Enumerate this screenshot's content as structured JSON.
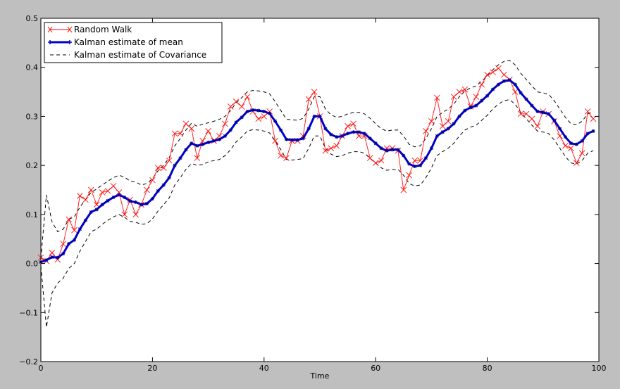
{
  "chart_data": {
    "type": "line",
    "title": "",
    "xlabel": "Time",
    "ylabel": "",
    "xlim": [
      0,
      100
    ],
    "ylim": [
      -0.2,
      0.5
    ],
    "x_ticks": [
      0,
      20,
      40,
      60,
      80,
      100
    ],
    "x_tick_labels": [
      "0",
      "20",
      "40",
      "60",
      "80",
      "100"
    ],
    "y_ticks": [
      -0.2,
      -0.1,
      0.0,
      0.1,
      0.2,
      0.3,
      0.4,
      0.5
    ],
    "y_tick_labels": [
      "−0.2",
      "−0.1",
      "0.0",
      "0.1",
      "0.2",
      "0.3",
      "0.4",
      "0.5"
    ],
    "grid": false,
    "legend_position": "top-left",
    "x": [
      0,
      1,
      2,
      3,
      4,
      5,
      6,
      7,
      8,
      9,
      10,
      11,
      12,
      13,
      14,
      15,
      16,
      17,
      18,
      19,
      20,
      21,
      22,
      23,
      24,
      25,
      26,
      27,
      28,
      29,
      30,
      31,
      32,
      33,
      34,
      35,
      36,
      37,
      38,
      39,
      40,
      41,
      42,
      43,
      44,
      45,
      46,
      47,
      48,
      49,
      50,
      51,
      52,
      53,
      54,
      55,
      56,
      57,
      58,
      59,
      60,
      61,
      62,
      63,
      64,
      65,
      66,
      67,
      68,
      69,
      70,
      71,
      72,
      73,
      74,
      75,
      76,
      77,
      78,
      79,
      80,
      81,
      82,
      83,
      84,
      85,
      86,
      87,
      88,
      89,
      90,
      91,
      92,
      93,
      94,
      95,
      96,
      97,
      98,
      99
    ],
    "series": [
      {
        "name": "Random Walk",
        "color": "#ff0000",
        "style": "thin solid line, x markers",
        "values": [
          0.012,
          0.005,
          0.022,
          0.008,
          0.04,
          0.09,
          0.068,
          0.138,
          0.13,
          0.15,
          0.12,
          0.145,
          0.148,
          0.158,
          0.145,
          0.1,
          0.13,
          0.1,
          0.12,
          0.15,
          0.17,
          0.195,
          0.195,
          0.21,
          0.265,
          0.265,
          0.285,
          0.275,
          0.215,
          0.25,
          0.27,
          0.25,
          0.26,
          0.285,
          0.32,
          0.33,
          0.32,
          0.34,
          0.31,
          0.295,
          0.3,
          0.31,
          0.25,
          0.22,
          0.215,
          0.25,
          0.25,
          0.26,
          0.335,
          0.35,
          0.3,
          0.23,
          0.235,
          0.24,
          0.26,
          0.28,
          0.285,
          0.26,
          0.26,
          0.215,
          0.205,
          0.21,
          0.235,
          0.235,
          0.23,
          0.15,
          0.18,
          0.21,
          0.21,
          0.27,
          0.29,
          0.338,
          0.28,
          0.29,
          0.34,
          0.35,
          0.355,
          0.32,
          0.34,
          0.365,
          0.385,
          0.39,
          0.398,
          0.385,
          0.375,
          0.35,
          0.305,
          0.305,
          0.295,
          0.28,
          0.31,
          0.305,
          0.29,
          0.26,
          0.24,
          0.235,
          0.205,
          0.225,
          0.31,
          0.295
        ]
      },
      {
        "name": "Kalman estimate of mean",
        "color": "#0000ff",
        "style": "thick solid line, star markers",
        "values": [
          0.003,
          0.007,
          0.013,
          0.012,
          0.02,
          0.04,
          0.048,
          0.07,
          0.088,
          0.105,
          0.11,
          0.12,
          0.128,
          0.135,
          0.14,
          0.135,
          0.127,
          0.125,
          0.12,
          0.122,
          0.132,
          0.148,
          0.16,
          0.175,
          0.2,
          0.215,
          0.232,
          0.245,
          0.24,
          0.243,
          0.247,
          0.25,
          0.253,
          0.26,
          0.272,
          0.288,
          0.298,
          0.31,
          0.313,
          0.312,
          0.31,
          0.306,
          0.29,
          0.272,
          0.253,
          0.252,
          0.252,
          0.255,
          0.275,
          0.3,
          0.3,
          0.275,
          0.263,
          0.258,
          0.26,
          0.265,
          0.268,
          0.268,
          0.265,
          0.255,
          0.245,
          0.235,
          0.23,
          0.232,
          0.232,
          0.22,
          0.203,
          0.198,
          0.2,
          0.215,
          0.235,
          0.26,
          0.268,
          0.275,
          0.285,
          0.3,
          0.312,
          0.318,
          0.322,
          0.332,
          0.342,
          0.355,
          0.365,
          0.372,
          0.374,
          0.365,
          0.348,
          0.335,
          0.322,
          0.31,
          0.308,
          0.305,
          0.292,
          0.275,
          0.258,
          0.245,
          0.243,
          0.25,
          0.265,
          0.27
        ]
      },
      {
        "name": "Kalman estimate of Covariance",
        "color": "#000000",
        "style": "dashed line, upper and lower bands",
        "upper": [
          0.01,
          0.14,
          0.085,
          0.065,
          0.07,
          0.09,
          0.095,
          0.115,
          0.13,
          0.145,
          0.152,
          0.16,
          0.168,
          0.175,
          0.18,
          0.176,
          0.168,
          0.166,
          0.16,
          0.163,
          0.173,
          0.189,
          0.2,
          0.216,
          0.24,
          0.255,
          0.272,
          0.286,
          0.28,
          0.284,
          0.287,
          0.29,
          0.294,
          0.3,
          0.312,
          0.328,
          0.338,
          0.35,
          0.353,
          0.352,
          0.35,
          0.346,
          0.33,
          0.312,
          0.294,
          0.293,
          0.292,
          0.296,
          0.315,
          0.34,
          0.34,
          0.315,
          0.303,
          0.298,
          0.3,
          0.305,
          0.308,
          0.308,
          0.305,
          0.296,
          0.285,
          0.275,
          0.27,
          0.272,
          0.272,
          0.26,
          0.243,
          0.238,
          0.24,
          0.255,
          0.275,
          0.3,
          0.308,
          0.315,
          0.325,
          0.34,
          0.352,
          0.358,
          0.362,
          0.372,
          0.382,
          0.395,
          0.405,
          0.412,
          0.414,
          0.405,
          0.388,
          0.375,
          0.362,
          0.35,
          0.348,
          0.345,
          0.332,
          0.315,
          0.298,
          0.285,
          0.283,
          0.29,
          0.305,
          0.31
        ],
        "lower": [
          -0.005,
          -0.13,
          -0.06,
          -0.04,
          -0.03,
          -0.01,
          0.0,
          0.025,
          0.045,
          0.065,
          0.07,
          0.08,
          0.088,
          0.095,
          0.1,
          0.094,
          0.086,
          0.084,
          0.08,
          0.081,
          0.091,
          0.107,
          0.12,
          0.134,
          0.16,
          0.175,
          0.192,
          0.204,
          0.2,
          0.202,
          0.207,
          0.21,
          0.212,
          0.22,
          0.232,
          0.248,
          0.258,
          0.27,
          0.273,
          0.272,
          0.27,
          0.266,
          0.25,
          0.232,
          0.212,
          0.211,
          0.212,
          0.214,
          0.235,
          0.26,
          0.26,
          0.235,
          0.223,
          0.218,
          0.22,
          0.225,
          0.228,
          0.228,
          0.225,
          0.214,
          0.205,
          0.195,
          0.19,
          0.192,
          0.192,
          0.18,
          0.163,
          0.158,
          0.16,
          0.175,
          0.195,
          0.22,
          0.228,
          0.235,
          0.245,
          0.26,
          0.272,
          0.278,
          0.282,
          0.292,
          0.302,
          0.315,
          0.325,
          0.332,
          0.334,
          0.325,
          0.308,
          0.295,
          0.282,
          0.27,
          0.268,
          0.265,
          0.252,
          0.235,
          0.218,
          0.205,
          0.203,
          0.21,
          0.225,
          0.23
        ]
      }
    ]
  }
}
